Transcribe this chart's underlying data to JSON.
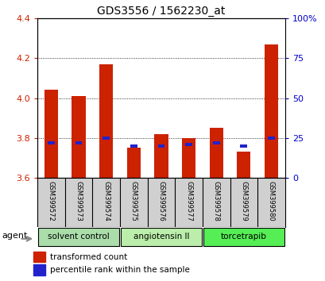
{
  "title": "GDS3556 / 1562230_at",
  "samples": [
    "GSM399572",
    "GSM399573",
    "GSM399574",
    "GSM399575",
    "GSM399576",
    "GSM399577",
    "GSM399578",
    "GSM399579",
    "GSM399580"
  ],
  "transformed_count": [
    4.04,
    4.01,
    4.17,
    3.75,
    3.82,
    3.8,
    3.85,
    3.73,
    4.27
  ],
  "percentile_rank": [
    22,
    22,
    25,
    20,
    20,
    21,
    22,
    20,
    25
  ],
  "ymin": 3.6,
  "ymax": 4.4,
  "yticks": [
    3.6,
    3.8,
    4.0,
    4.2,
    4.4
  ],
  "y2ticks": [
    0,
    25,
    50,
    75,
    100
  ],
  "y2labels": [
    "0",
    "25",
    "50",
    "75",
    "100%"
  ],
  "bar_color": "#cc2200",
  "blue_color": "#2222cc",
  "groups": [
    {
      "label": "solvent control",
      "start": 0,
      "end": 3,
      "color": "#aaddaa"
    },
    {
      "label": "angiotensin II",
      "start": 3,
      "end": 6,
      "color": "#bbeeaa"
    },
    {
      "label": "torcetrapib",
      "start": 6,
      "end": 9,
      "color": "#55ee55"
    }
  ],
  "legend_red_label": "transformed count",
  "legend_blue_label": "percentile rank within the sample",
  "agent_label": "agent",
  "left_tick_color": "#cc2200",
  "right_tick_color": "#0000cc",
  "sample_box_color": "#d0d0d0",
  "bar_width": 0.5
}
